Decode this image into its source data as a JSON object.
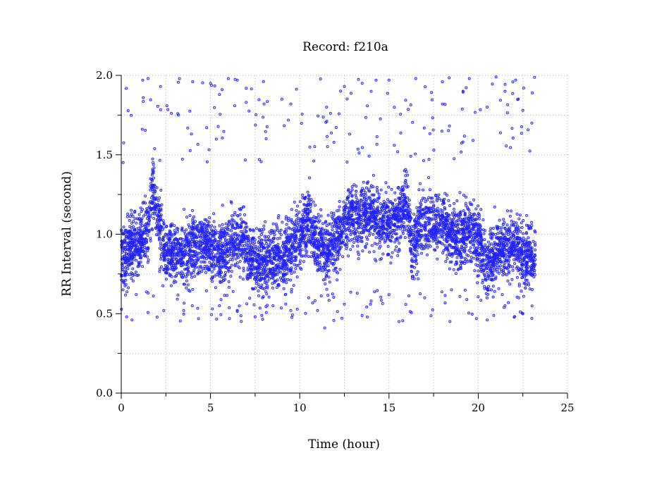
{
  "chart_data": {
    "type": "scatter",
    "title": "Record:  f210a",
    "xlabel": "Time (hour)",
    "ylabel": "RR Interval (second)",
    "xlim": [
      0,
      25
    ],
    "ylim": [
      0,
      2.0
    ],
    "x_ticks": [
      0,
      5,
      10,
      15,
      20,
      25
    ],
    "x_tick_labels": [
      "0",
      "5",
      "10",
      "15",
      "20",
      "25"
    ],
    "x_minor_ticks": [
      2.5,
      7.5,
      12.5,
      17.5,
      22.5
    ],
    "y_ticks": [
      0.0,
      0.5,
      1.0,
      1.5,
      2.0
    ],
    "y_tick_labels": [
      "0.0",
      "0.5",
      "1.0",
      "1.5",
      "2.0"
    ],
    "y_minor_ticks": [
      0.25,
      0.75,
      1.25,
      1.75
    ],
    "grid": true,
    "marker": "open-circle",
    "series_color": "#2222ff",
    "data_span_hours": [
      0,
      23.2
    ],
    "trend": [
      {
        "x": 0.0,
        "y": 0.86
      },
      {
        "x": 0.5,
        "y": 0.93
      },
      {
        "x": 1.0,
        "y": 0.95
      },
      {
        "x": 1.5,
        "y": 1.05
      },
      {
        "x": 1.8,
        "y": 1.28
      },
      {
        "x": 2.0,
        "y": 1.1
      },
      {
        "x": 2.5,
        "y": 0.88
      },
      {
        "x": 3.0,
        "y": 0.87
      },
      {
        "x": 3.5,
        "y": 0.88
      },
      {
        "x": 4.0,
        "y": 0.92
      },
      {
        "x": 4.5,
        "y": 0.95
      },
      {
        "x": 5.0,
        "y": 0.92
      },
      {
        "x": 5.5,
        "y": 0.88
      },
      {
        "x": 6.0,
        "y": 0.9
      },
      {
        "x": 6.5,
        "y": 0.97
      },
      {
        "x": 7.0,
        "y": 0.92
      },
      {
        "x": 7.5,
        "y": 0.82
      },
      {
        "x": 8.0,
        "y": 0.84
      },
      {
        "x": 8.5,
        "y": 0.86
      },
      {
        "x": 9.0,
        "y": 0.88
      },
      {
        "x": 9.5,
        "y": 0.9
      },
      {
        "x": 10.0,
        "y": 1.0
      },
      {
        "x": 10.5,
        "y": 1.1
      },
      {
        "x": 11.0,
        "y": 0.95
      },
      {
        "x": 11.5,
        "y": 0.88
      },
      {
        "x": 12.0,
        "y": 0.95
      },
      {
        "x": 12.5,
        "y": 1.08
      },
      {
        "x": 13.0,
        "y": 1.12
      },
      {
        "x": 13.5,
        "y": 1.1
      },
      {
        "x": 14.0,
        "y": 1.15
      },
      {
        "x": 14.5,
        "y": 1.08
      },
      {
        "x": 15.0,
        "y": 1.05
      },
      {
        "x": 15.5,
        "y": 1.12
      },
      {
        "x": 16.0,
        "y": 1.2
      },
      {
        "x": 16.3,
        "y": 0.9
      },
      {
        "x": 16.8,
        "y": 1.08
      },
      {
        "x": 17.5,
        "y": 1.05
      },
      {
        "x": 18.0,
        "y": 1.1
      },
      {
        "x": 18.5,
        "y": 1.0
      },
      {
        "x": 19.0,
        "y": 0.95
      },
      {
        "x": 19.5,
        "y": 1.05
      },
      {
        "x": 20.0,
        "y": 0.95
      },
      {
        "x": 20.5,
        "y": 0.82
      },
      {
        "x": 21.0,
        "y": 0.88
      },
      {
        "x": 21.5,
        "y": 0.92
      },
      {
        "x": 22.0,
        "y": 0.95
      },
      {
        "x": 22.5,
        "y": 0.86
      },
      {
        "x": 23.0,
        "y": 0.86
      },
      {
        "x": 23.2,
        "y": 0.85
      }
    ],
    "spread": 0.12,
    "outliers_high": [
      {
        "x": 1.2,
        "y": 1.97
      },
      {
        "x": 1.5,
        "y": 1.98
      },
      {
        "x": 2.2,
        "y": 1.93
      },
      {
        "x": 3.2,
        "y": 1.75
      },
      {
        "x": 4.0,
        "y": 1.96
      },
      {
        "x": 5.0,
        "y": 1.95
      },
      {
        "x": 5.5,
        "y": 1.88
      },
      {
        "x": 6.0,
        "y": 1.98
      },
      {
        "x": 6.5,
        "y": 1.97
      },
      {
        "x": 7.0,
        "y": 1.83
      },
      {
        "x": 8.0,
        "y": 1.82
      },
      {
        "x": 9.0,
        "y": 1.85
      },
      {
        "x": 9.5,
        "y": 1.82
      },
      {
        "x": 11.5,
        "y": 1.8
      },
      {
        "x": 12.5,
        "y": 1.93
      },
      {
        "x": 13.5,
        "y": 1.95
      },
      {
        "x": 14.0,
        "y": 1.9
      },
      {
        "x": 15.0,
        "y": 1.97
      },
      {
        "x": 16.5,
        "y": 1.98
      },
      {
        "x": 18.0,
        "y": 1.82
      },
      {
        "x": 19.5,
        "y": 1.98
      },
      {
        "x": 20.5,
        "y": 1.8
      },
      {
        "x": 21.0,
        "y": 1.99
      },
      {
        "x": 21.5,
        "y": 1.9
      },
      {
        "x": 22.5,
        "y": 1.78
      },
      {
        "x": 23.0,
        "y": 1.7
      }
    ],
    "outliers_low": [
      {
        "x": 0.3,
        "y": 0.48
      },
      {
        "x": 0.6,
        "y": 0.46
      },
      {
        "x": 1.5,
        "y": 0.63
      },
      {
        "x": 3.5,
        "y": 0.52
      },
      {
        "x": 5.5,
        "y": 0.55
      },
      {
        "x": 6.5,
        "y": 0.52
      },
      {
        "x": 7.5,
        "y": 0.48
      },
      {
        "x": 8.5,
        "y": 0.55
      },
      {
        "x": 9.5,
        "y": 0.52
      },
      {
        "x": 10.5,
        "y": 0.6
      },
      {
        "x": 11.0,
        "y": 0.52
      },
      {
        "x": 11.4,
        "y": 0.41
      },
      {
        "x": 12.5,
        "y": 0.56
      },
      {
        "x": 14.0,
        "y": 0.58
      },
      {
        "x": 15.0,
        "y": 0.62
      },
      {
        "x": 17.0,
        "y": 0.6
      },
      {
        "x": 18.5,
        "y": 0.65
      },
      {
        "x": 20.5,
        "y": 0.46
      },
      {
        "x": 21.5,
        "y": 0.55
      },
      {
        "x": 22.5,
        "y": 0.5
      },
      {
        "x": 23.0,
        "y": 0.47
      }
    ]
  }
}
